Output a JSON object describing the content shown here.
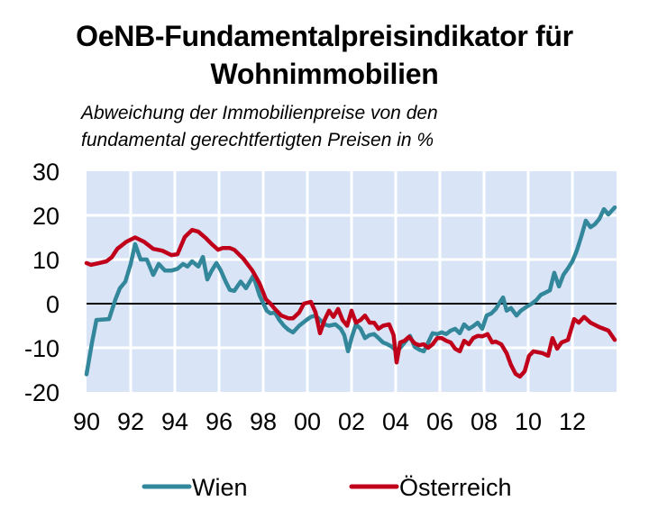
{
  "title_lines": [
    "OeNB-Fundamentalpreisindikator für",
    "Wohnimmobilien"
  ],
  "subtitle_lines": [
    "Abweichung der Immobilienpreise von den",
    "fundamental gerechtfertigten Preisen in  %"
  ],
  "colors": {
    "plot_background": "#D9E4F6",
    "grid": "#FFFFFF",
    "zero_line": "#000000",
    "wien": "#33879A",
    "oesterreich": "#C0001A"
  },
  "chart_data": {
    "type": "line",
    "title": "OeNB-Fundamentalpreisindikator für Wohnimmobilien",
    "subtitle": "Abweichung der Immobilienpreise von den fundamental gerechtfertigten Preisen in  %",
    "xlabel": "",
    "ylabel": "",
    "xlim": [
      1990,
      2014
    ],
    "ylim": [
      -20,
      30
    ],
    "yticks": [
      30,
      20,
      10,
      0,
      -10,
      -20
    ],
    "ytick_labels": [
      "30",
      "20",
      "10",
      "0",
      "-10",
      "-20"
    ],
    "xticks": [
      1990,
      1992,
      1994,
      1996,
      1998,
      2000,
      2002,
      2004,
      2006,
      2008,
      2010,
      2012
    ],
    "xtick_labels": [
      "90",
      "92",
      "94",
      "96",
      "98",
      "00",
      "02",
      "04",
      "06",
      "08",
      "10",
      "12"
    ],
    "grid": true,
    "zero_line": true,
    "legend": {
      "placement": "bottom",
      "entries": [
        "Wien",
        "Österreich"
      ]
    },
    "series": [
      {
        "name": "Wien",
        "points": [
          [
            1990.0,
            -16
          ],
          [
            1990.24,
            -9
          ],
          [
            1990.45,
            -3.7
          ],
          [
            1991.02,
            -3.5
          ],
          [
            1991.31,
            1
          ],
          [
            1991.51,
            3.5
          ],
          [
            1991.76,
            5
          ],
          [
            1992.0,
            9
          ],
          [
            1992.2,
            13.5
          ],
          [
            1992.45,
            10
          ],
          [
            1992.73,
            10
          ],
          [
            1993.02,
            6.5
          ],
          [
            1993.27,
            9
          ],
          [
            1993.55,
            7.5
          ],
          [
            1993.84,
            7.5
          ],
          [
            1994.12,
            7.9
          ],
          [
            1994.37,
            9
          ],
          [
            1994.57,
            8.4
          ],
          [
            1994.78,
            9.6
          ],
          [
            1995.06,
            8.4
          ],
          [
            1995.27,
            10.6
          ],
          [
            1995.47,
            5.5
          ],
          [
            1995.67,
            7.5
          ],
          [
            1995.88,
            9.2
          ],
          [
            1996.08,
            7.5
          ],
          [
            1996.29,
            5.1
          ],
          [
            1996.49,
            3.1
          ],
          [
            1996.69,
            2.9
          ],
          [
            1996.98,
            5
          ],
          [
            1997.22,
            3.5
          ],
          [
            1997.55,
            6.3
          ],
          [
            1997.84,
            1.8
          ],
          [
            1998.16,
            -1.6
          ],
          [
            1998.33,
            -2.2
          ],
          [
            1998.53,
            -2
          ],
          [
            1998.73,
            -3.7
          ],
          [
            1998.94,
            -5
          ],
          [
            1999.14,
            -5.9
          ],
          [
            1999.35,
            -6.5
          ],
          [
            1999.63,
            -5
          ],
          [
            1999.96,
            -3.7
          ],
          [
            2000.16,
            -3
          ],
          [
            2000.37,
            -2.7
          ],
          [
            2000.57,
            -3.7
          ],
          [
            2000.78,
            -4.7
          ],
          [
            2000.98,
            -5
          ],
          [
            2001.27,
            -4.7
          ],
          [
            2001.51,
            -5.7
          ],
          [
            2001.67,
            -7.1
          ],
          [
            2001.84,
            -10.8
          ],
          [
            2002.0,
            -7.8
          ],
          [
            2002.2,
            -4.7
          ],
          [
            2002.41,
            -5.7
          ],
          [
            2002.61,
            -7.8
          ],
          [
            2002.82,
            -7.1
          ],
          [
            2003.02,
            -6.9
          ],
          [
            2003.22,
            -7.8
          ],
          [
            2003.43,
            -8.8
          ],
          [
            2003.63,
            -9.2
          ],
          [
            2003.84,
            -9.8
          ],
          [
            2004.04,
            -10.8
          ],
          [
            2004.24,
            -9.8
          ],
          [
            2004.65,
            -7.3
          ],
          [
            2004.86,
            -9.8
          ],
          [
            2005.06,
            -10.4
          ],
          [
            2005.27,
            -10.8
          ],
          [
            2005.47,
            -8.8
          ],
          [
            2005.67,
            -6.7
          ],
          [
            2005.88,
            -6.9
          ],
          [
            2006.08,
            -6.5
          ],
          [
            2006.29,
            -6.9
          ],
          [
            2006.49,
            -6.1
          ],
          [
            2006.69,
            -5.7
          ],
          [
            2006.9,
            -6.7
          ],
          [
            2007.1,
            -4.7
          ],
          [
            2007.31,
            -5.7
          ],
          [
            2007.51,
            -5.1
          ],
          [
            2007.71,
            -4.3
          ],
          [
            2007.92,
            -5.7
          ],
          [
            2008.12,
            -2.7
          ],
          [
            2008.33,
            -2.2
          ],
          [
            2008.53,
            -1.2
          ],
          [
            2008.73,
            0.4
          ],
          [
            2008.86,
            1.4
          ],
          [
            2009.02,
            -1.6
          ],
          [
            2009.22,
            -1
          ],
          [
            2009.47,
            -2.7
          ],
          [
            2009.67,
            -1.6
          ],
          [
            2009.96,
            -0.6
          ],
          [
            2010.16,
            0
          ],
          [
            2010.37,
            0.8
          ],
          [
            2010.57,
            2
          ],
          [
            2010.78,
            2.5
          ],
          [
            2010.98,
            3
          ],
          [
            2011.18,
            7
          ],
          [
            2011.39,
            3.9
          ],
          [
            2011.59,
            6.5
          ],
          [
            2011.8,
            8
          ],
          [
            2012.0,
            9.6
          ],
          [
            2012.2,
            12
          ],
          [
            2012.41,
            15.3
          ],
          [
            2012.61,
            18.8
          ],
          [
            2012.82,
            17.3
          ],
          [
            2013.02,
            18
          ],
          [
            2013.22,
            19.2
          ],
          [
            2013.43,
            21.4
          ],
          [
            2013.63,
            20.2
          ],
          [
            2013.92,
            21.8
          ]
        ]
      },
      {
        "name": "Österreich",
        "points": [
          [
            1990.0,
            9.2
          ],
          [
            1990.2,
            8.8
          ],
          [
            1990.57,
            9.2
          ],
          [
            1990.9,
            9.6
          ],
          [
            1991.14,
            10.5
          ],
          [
            1991.39,
            12.4
          ],
          [
            1991.8,
            14
          ],
          [
            1992.2,
            15
          ],
          [
            1992.61,
            14
          ],
          [
            1993.02,
            12.4
          ],
          [
            1993.43,
            12
          ],
          [
            1993.84,
            11
          ],
          [
            1994.12,
            11.2
          ],
          [
            1994.45,
            15.1
          ],
          [
            1994.78,
            16.7
          ],
          [
            1995.06,
            16.3
          ],
          [
            1995.39,
            14.9
          ],
          [
            1995.67,
            13.5
          ],
          [
            1995.96,
            12.2
          ],
          [
            1996.16,
            12.6
          ],
          [
            1996.49,
            12.6
          ],
          [
            1996.69,
            12.2
          ],
          [
            1997.1,
            10.2
          ],
          [
            1997.51,
            7.5
          ],
          [
            1997.84,
            4.5
          ],
          [
            1998.12,
            1
          ],
          [
            1998.33,
            0
          ],
          [
            1998.53,
            -1.2
          ],
          [
            1998.82,
            -2.7
          ],
          [
            1999.14,
            -3.3
          ],
          [
            1999.35,
            -3.3
          ],
          [
            1999.63,
            -2
          ],
          [
            1999.84,
            0
          ],
          [
            2000.16,
            0.4
          ],
          [
            2000.37,
            -2
          ],
          [
            2000.57,
            -6.7
          ],
          [
            2000.78,
            -3.7
          ],
          [
            2000.98,
            -1.6
          ],
          [
            2001.18,
            -3
          ],
          [
            2001.39,
            -1.2
          ],
          [
            2001.59,
            -3.7
          ],
          [
            2001.8,
            -5
          ],
          [
            2002.0,
            -1.6
          ],
          [
            2002.2,
            -4.3
          ],
          [
            2002.41,
            -3.7
          ],
          [
            2002.61,
            -2.7
          ],
          [
            2002.82,
            -4.3
          ],
          [
            2003.02,
            -4.3
          ],
          [
            2003.22,
            -5.7
          ],
          [
            2003.43,
            -5
          ],
          [
            2003.7,
            -4.7
          ],
          [
            2003.9,
            -7.1
          ],
          [
            2004.04,
            -13.3
          ],
          [
            2004.2,
            -8.8
          ],
          [
            2004.4,
            -8.4
          ],
          [
            2004.6,
            -7.5
          ],
          [
            2004.86,
            -9
          ],
          [
            2005.06,
            -9.4
          ],
          [
            2005.27,
            -9.2
          ],
          [
            2005.47,
            -10
          ],
          [
            2005.67,
            -9.2
          ],
          [
            2005.88,
            -7.8
          ],
          [
            2006.08,
            -7.8
          ],
          [
            2006.29,
            -8.4
          ],
          [
            2006.49,
            -8.8
          ],
          [
            2006.69,
            -10.2
          ],
          [
            2006.9,
            -10.8
          ],
          [
            2007.1,
            -8.4
          ],
          [
            2007.31,
            -9.2
          ],
          [
            2007.51,
            -7.8
          ],
          [
            2007.71,
            -7.3
          ],
          [
            2007.92,
            -7.4
          ],
          [
            2008.16,
            -6.9
          ],
          [
            2008.37,
            -8.8
          ],
          [
            2008.53,
            -8.6
          ],
          [
            2008.78,
            -9.2
          ],
          [
            2009.02,
            -11.2
          ],
          [
            2009.22,
            -13.9
          ],
          [
            2009.43,
            -15.9
          ],
          [
            2009.63,
            -16.5
          ],
          [
            2009.84,
            -15.3
          ],
          [
            2010.04,
            -11.8
          ],
          [
            2010.24,
            -10.8
          ],
          [
            2010.45,
            -11
          ],
          [
            2010.65,
            -11.2
          ],
          [
            2010.9,
            -11.8
          ],
          [
            2011.1,
            -7.8
          ],
          [
            2011.31,
            -10.2
          ],
          [
            2011.51,
            -8.8
          ],
          [
            2011.8,
            -8.2
          ],
          [
            2012.08,
            -3.5
          ],
          [
            2012.29,
            -4.3
          ],
          [
            2012.53,
            -3
          ],
          [
            2012.82,
            -4.3
          ],
          [
            2013.22,
            -5.3
          ],
          [
            2013.63,
            -6.1
          ],
          [
            2013.92,
            -8.2
          ]
        ]
      }
    ]
  }
}
